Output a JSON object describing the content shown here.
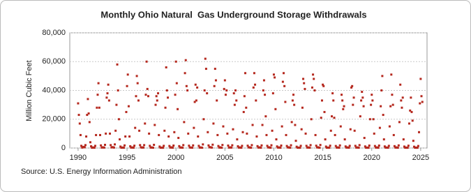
{
  "chart_data": {
    "type": "scatter",
    "title": "Monthly Ohio Natural  Gas Underground Storage Withdrawals",
    "y_label": "Million Cubic Feet",
    "source": "Source: U.S. Energy Information Administration",
    "color": "#b5281e",
    "grid": true,
    "xlim": [
      1989.15,
      2025.65
    ],
    "xticks": [
      1990,
      1995,
      2000,
      2005,
      2010,
      2015,
      2020,
      2025
    ],
    "ylim": [
      0,
      80000
    ],
    "yticks": [
      0,
      {
        "value": 20000,
        "label": "20,000"
      },
      {
        "value": 40000,
        "label": "40,000"
      },
      {
        "value": 60000,
        "label": "60,000"
      },
      {
        "value": 80000,
        "label": "80,000"
      }
    ],
    "x": [
      1990.0,
      1990.08,
      1990.17,
      1990.25,
      1990.33,
      1990.42,
      1990.5,
      1990.58,
      1990.67,
      1990.75,
      1990.83,
      1990.92,
      1991.0,
      1991.08,
      1991.17,
      1991.25,
      1991.33,
      1991.42,
      1991.5,
      1991.58,
      1991.67,
      1991.75,
      1991.83,
      1991.92,
      1992.0,
      1992.08,
      1992.17,
      1992.25,
      1992.33,
      1992.42,
      1992.5,
      1992.58,
      1992.67,
      1992.75,
      1992.83,
      1992.92,
      1993.0,
      1993.08,
      1993.17,
      1993.25,
      1993.33,
      1993.42,
      1993.5,
      1993.58,
      1993.67,
      1993.75,
      1993.83,
      1993.92,
      1994.0,
      1994.08,
      1994.17,
      1994.25,
      1994.33,
      1994.42,
      1994.5,
      1994.58,
      1994.67,
      1994.75,
      1994.83,
      1994.92,
      1995.0,
      1995.08,
      1995.17,
      1995.25,
      1995.33,
      1995.42,
      1995.5,
      1995.58,
      1995.67,
      1995.75,
      1995.83,
      1995.92,
      1996.0,
      1996.08,
      1996.17,
      1996.25,
      1996.33,
      1996.42,
      1996.5,
      1996.58,
      1996.67,
      1996.75,
      1996.83,
      1996.92,
      1997.0,
      1997.08,
      1997.17,
      1997.25,
      1997.33,
      1997.42,
      1997.5,
      1997.58,
      1997.67,
      1997.75,
      1997.83,
      1997.92,
      1998.0,
      1998.08,
      1998.17,
      1998.25,
      1998.33,
      1998.42,
      1998.5,
      1998.58,
      1998.67,
      1998.75,
      1998.83,
      1998.92,
      1999.0,
      1999.08,
      1999.17,
      1999.25,
      1999.33,
      1999.42,
      1999.5,
      1999.58,
      1999.67,
      1999.75,
      1999.83,
      1999.92,
      2000.0,
      2000.08,
      2000.17,
      2000.25,
      2000.33,
      2000.42,
      2000.5,
      2000.58,
      2000.67,
      2000.75,
      2000.83,
      2000.92,
      2001.0,
      2001.08,
      2001.17,
      2001.25,
      2001.33,
      2001.42,
      2001.5,
      2001.58,
      2001.67,
      2001.75,
      2001.83,
      2001.92,
      2002.0,
      2002.08,
      2002.17,
      2002.25,
      2002.33,
      2002.42,
      2002.5,
      2002.58,
      2002.67,
      2002.75,
      2002.83,
      2002.92,
      2003.0,
      2003.08,
      2003.17,
      2003.25,
      2003.33,
      2003.42,
      2003.5,
      2003.58,
      2003.67,
      2003.75,
      2003.83,
      2003.92,
      2004.0,
      2004.08,
      2004.17,
      2004.25,
      2004.33,
      2004.42,
      2004.5,
      2004.58,
      2004.67,
      2004.75,
      2004.83,
      2004.92,
      2005.0,
      2005.08,
      2005.17,
      2005.25,
      2005.33,
      2005.42,
      2005.5,
      2005.58,
      2005.67,
      2005.75,
      2005.83,
      2005.92,
      2006.0,
      2006.08,
      2006.17,
      2006.25,
      2006.33,
      2006.42,
      2006.5,
      2006.58,
      2006.67,
      2006.75,
      2006.83,
      2006.92,
      2007.0,
      2007.08,
      2007.17,
      2007.25,
      2007.33,
      2007.42,
      2007.5,
      2007.58,
      2007.67,
      2007.75,
      2007.83,
      2007.92,
      2008.0,
      2008.08,
      2008.17,
      2008.25,
      2008.33,
      2008.42,
      2008.5,
      2008.58,
      2008.67,
      2008.75,
      2008.83,
      2008.92,
      2009.0,
      2009.08,
      2009.17,
      2009.25,
      2009.33,
      2009.42,
      2009.5,
      2009.58,
      2009.67,
      2009.75,
      2009.83,
      2009.92,
      2010.0,
      2010.08,
      2010.17,
      2010.25,
      2010.33,
      2010.42,
      2010.5,
      2010.58,
      2010.67,
      2010.75,
      2010.83,
      2010.92,
      2011.0,
      2011.08,
      2011.17,
      2011.25,
      2011.33,
      2011.42,
      2011.5,
      2011.58,
      2011.67,
      2011.75,
      2011.83,
      2011.92,
      2012.0,
      2012.08,
      2012.17,
      2012.25,
      2012.33,
      2012.42,
      2012.5,
      2012.58,
      2012.67,
      2012.75,
      2012.83,
      2012.92,
      2013.0,
      2013.08,
      2013.17,
      2013.25,
      2013.33,
      2013.42,
      2013.5,
      2013.58,
      2013.67,
      2013.75,
      2013.83,
      2013.92,
      2014.0,
      2014.08,
      2014.17,
      2014.25,
      2014.33,
      2014.42,
      2014.5,
      2014.58,
      2014.67,
      2014.75,
      2014.83,
      2014.92,
      2015.0,
      2015.08,
      2015.17,
      2015.25,
      2015.33,
      2015.42,
      2015.5,
      2015.58,
      2015.67,
      2015.75,
      2015.83,
      2015.92,
      2016.0,
      2016.08,
      2016.17,
      2016.25,
      2016.33,
      2016.42,
      2016.5,
      2016.58,
      2016.67,
      2016.75,
      2016.83,
      2016.92,
      2017.0,
      2017.08,
      2017.17,
      2017.25,
      2017.33,
      2017.42,
      2017.5,
      2017.58,
      2017.67,
      2017.75,
      2017.83,
      2017.92,
      2018.0,
      2018.08,
      2018.17,
      2018.25,
      2018.33,
      2018.42,
      2018.5,
      2018.58,
      2018.67,
      2018.75,
      2018.83,
      2018.92,
      2019.0,
      2019.08,
      2019.17,
      2019.25,
      2019.33,
      2019.42,
      2019.5,
      2019.58,
      2019.67,
      2019.75,
      2019.83,
      2019.92,
      2020.0,
      2020.08,
      2020.17,
      2020.25,
      2020.33,
      2020.42,
      2020.5,
      2020.58,
      2020.67,
      2020.75,
      2020.83,
      2020.92,
      2021.0,
      2021.08,
      2021.17,
      2021.25,
      2021.33,
      2021.42,
      2021.5,
      2021.58,
      2021.67,
      2021.75,
      2021.83,
      2021.92,
      2022.0,
      2022.08,
      2022.17,
      2022.25,
      2022.33,
      2022.42,
      2022.5,
      2022.58,
      2022.67,
      2022.75,
      2022.83,
      2022.92,
      2023.0,
      2023.08,
      2023.17,
      2023.25,
      2023.33,
      2023.42,
      2023.5,
      2023.58,
      2023.67,
      2023.75,
      2023.83,
      2023.92,
      2024.0,
      2024.08,
      2024.17,
      2024.25,
      2024.33,
      2024.42,
      2024.5,
      2024.58,
      2024.67,
      2024.75,
      2024.83,
      2024.92,
      2025.0,
      2025.08,
      2025.17
    ],
    "values": [
      31000,
      23000,
      17000,
      9000,
      1500,
      300,
      600,
      800,
      500,
      2000,
      8000,
      23000,
      34000,
      24000,
      18000,
      4000,
      1200,
      200,
      400,
      300,
      200,
      1500,
      9000,
      28000,
      37000,
      45000,
      28000,
      9000,
      1800,
      300,
      500,
      400,
      300,
      2200,
      10000,
      35000,
      38000,
      44000,
      33000,
      10000,
      2000,
      400,
      600,
      500,
      300,
      2500,
      12000,
      30000,
      58000,
      40000,
      20000,
      6000,
      1000,
      200,
      300,
      300,
      200,
      1800,
      8000,
      25000,
      43000,
      51000,
      29000,
      8000,
      1200,
      300,
      400,
      300,
      200,
      1600,
      14000,
      36000,
      50000,
      45000,
      33000,
      12000,
      2000,
      500,
      300,
      400,
      300,
      2000,
      17000,
      37000,
      60000,
      41000,
      36000,
      10000,
      1500,
      300,
      400,
      300,
      200,
      2200,
      16000,
      30000,
      36000,
      33000,
      38000,
      9000,
      1000,
      200,
      300,
      200,
      200,
      1500,
      12000,
      28000,
      56000,
      40000,
      35000,
      8000,
      1400,
      300,
      500,
      300,
      200,
      1700,
      11000,
      37000,
      60000,
      45000,
      27000,
      7000,
      1300,
      300,
      400,
      300,
      200,
      2000,
      18000,
      52000,
      61000,
      43000,
      40000,
      10000,
      1600,
      400,
      300,
      300,
      200,
      1800,
      14000,
      32000,
      44000,
      33000,
      42000,
      8000,
      1500,
      300,
      400,
      300,
      200,
      2500,
      20000,
      40000,
      62000,
      55000,
      38000,
      11000,
      1800,
      500,
      600,
      400,
      300,
      2300,
      17000,
      43000,
      55000,
      47000,
      33000,
      9000,
      1400,
      300,
      500,
      300,
      200,
      2100,
      15000,
      41000,
      47000,
      37000,
      40000,
      10000,
      1700,
      300,
      400,
      400,
      300,
      1900,
      13000,
      38000,
      30000,
      40000,
      33000,
      6000,
      1200,
      300,
      400,
      300,
      200,
      1500,
      11000,
      25000,
      36000,
      52000,
      28000,
      10000,
      1600,
      400,
      500,
      300,
      200,
      2000,
      16000,
      42000,
      52000,
      44000,
      33000,
      8000,
      1300,
      300,
      400,
      400,
      200,
      1800,
      16000,
      40000,
      47000,
      37000,
      22000,
      9000,
      1500,
      400,
      500,
      300,
      200,
      1900,
      12000,
      38000,
      51000,
      49000,
      27000,
      6000,
      1100,
      300,
      400,
      300,
      200,
      1700,
      15000,
      46000,
      52000,
      43000,
      32000,
      9000,
      1400,
      400,
      500,
      300,
      200,
      1900,
      18000,
      33000,
      37000,
      30000,
      16000,
      5000,
      900,
      200,
      300,
      200,
      200,
      1500,
      13000,
      28000,
      48000,
      45000,
      41000,
      10000,
      1500,
      300,
      400,
      300,
      200,
      2000,
      20000,
      42000,
      51000,
      48000,
      40000,
      9000,
      1600,
      400,
      500,
      300,
      200,
      2100,
      21000,
      33000,
      44000,
      43000,
      25000,
      6000,
      1000,
      200,
      300,
      200,
      200,
      1600,
      12000,
      22000,
      38000,
      33000,
      21000,
      9000,
      1400,
      300,
      400,
      300,
      200,
      1800,
      15000,
      37000,
      33000,
      27000,
      29000,
      6000,
      1100,
      300,
      400,
      300,
      200,
      1500,
      13000,
      42000,
      43000,
      30000,
      35000,
      12000,
      1500,
      300,
      400,
      300,
      200,
      2000,
      22000,
      33000,
      39000,
      35000,
      29000,
      7000,
      1100,
      200,
      300,
      200,
      200,
      1700,
      20000,
      30000,
      37000,
      33000,
      20000,
      10000,
      1400,
      300,
      400,
      300,
      200,
      1700,
      14000,
      29000,
      40000,
      50000,
      23000,
      6000,
      1100,
      300,
      300,
      300,
      200,
      1500,
      15000,
      29000,
      51000,
      37000,
      30000,
      9000,
      1300,
      300,
      400,
      300,
      200,
      1800,
      18000,
      44000,
      33000,
      28000,
      35000,
      6000,
      1000,
      200,
      300,
      200,
      200,
      1600,
      17000,
      26000,
      35000,
      25000,
      19000,
      5000,
      900,
      200,
      300,
      200,
      200,
      1400,
      11000,
      31000,
      48000,
      36000,
      32000
    ]
  }
}
